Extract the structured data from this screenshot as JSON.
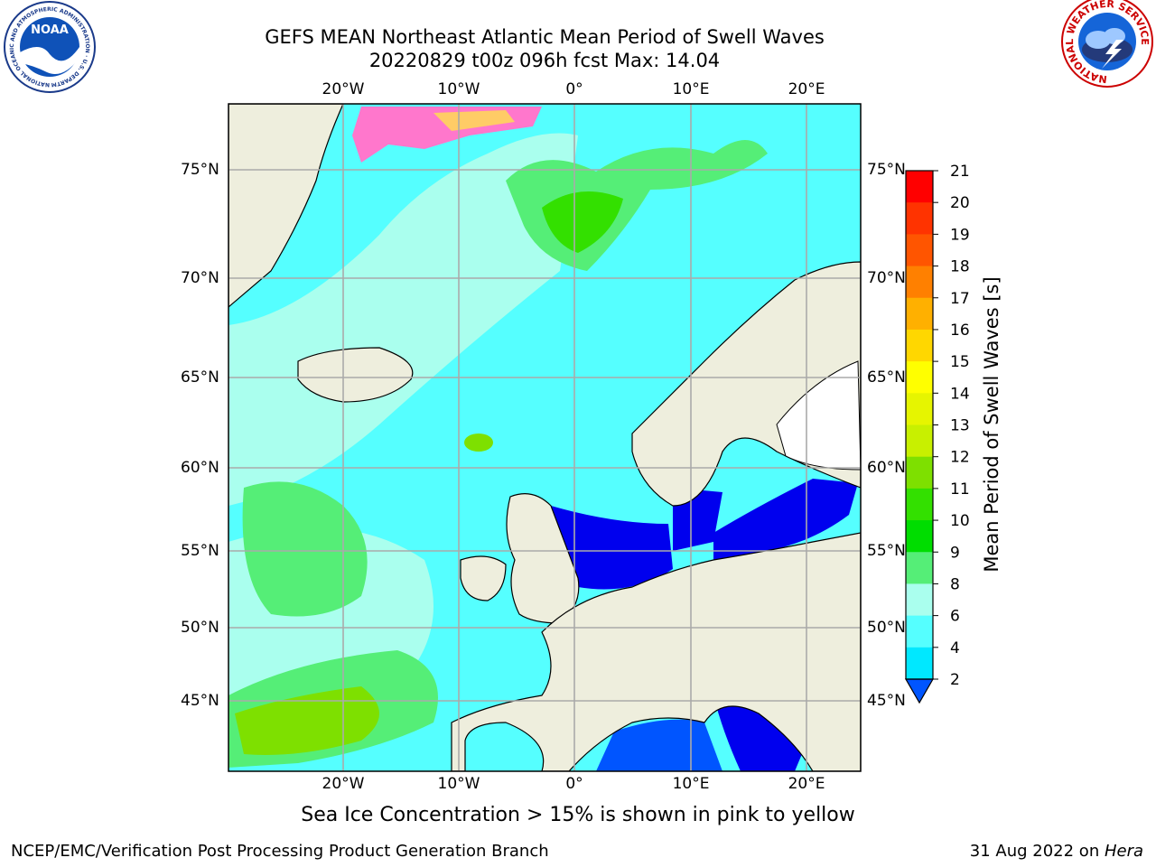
{
  "title_line1": "GEFS MEAN Northeast Atlantic Mean Period of Swell Waves",
  "title_line2": "20220829 t00z 096h fcst   Max: 14.04",
  "top_lon_labels": [
    "20°W",
    "10°W",
    "0°",
    "10°E",
    "20°E"
  ],
  "bottom_lon_labels": [
    "20°W",
    "10°W",
    "0°",
    "10°E",
    "20°E"
  ],
  "left_lat_labels": [
    "75°N",
    "70°N",
    "65°N",
    "60°N",
    "55°N",
    "50°N",
    "45°N"
  ],
  "right_lat_labels": [
    "75°N",
    "70°N",
    "65°N",
    "60°N",
    "55°N",
    "50°N",
    "45°N"
  ],
  "colorbar": {
    "label": "Mean Period of Swell Waves [s]",
    "ticks": [
      "21",
      "20",
      "19",
      "18",
      "17",
      "16",
      "15",
      "14",
      "13",
      "12",
      "11",
      "10",
      "9",
      "8",
      "6",
      "4",
      "2"
    ],
    "colors": [
      "#ff0000",
      "#ff3300",
      "#ff5500",
      "#ff8000",
      "#ffb000",
      "#ffd700",
      "#ffff00",
      "#e6f500",
      "#c8f000",
      "#7ee000",
      "#33e000",
      "#00dd00",
      "#55ee77",
      "#aaffee",
      "#55ffff",
      "#00e8ff",
      "#00aaff",
      "#0055ff"
    ]
  },
  "sea_ice_note": "Sea Ice Concentration > 15% is shown in pink to yellow",
  "footer_left": "NCEP/EMC/Verification Post Processing Product Generation Branch",
  "footer_date": "31 Aug 2022 on ",
  "footer_host": "Hera",
  "logos": {
    "left_text": "NOAA",
    "left_ring_text": "NATIONAL OCEANIC AND ATMOSPHERIC ADMINISTRATION · U.S. DEPARTMENT OF COMMERCE",
    "right_ring_text": "NATIONAL WEATHER SERVICE"
  }
}
